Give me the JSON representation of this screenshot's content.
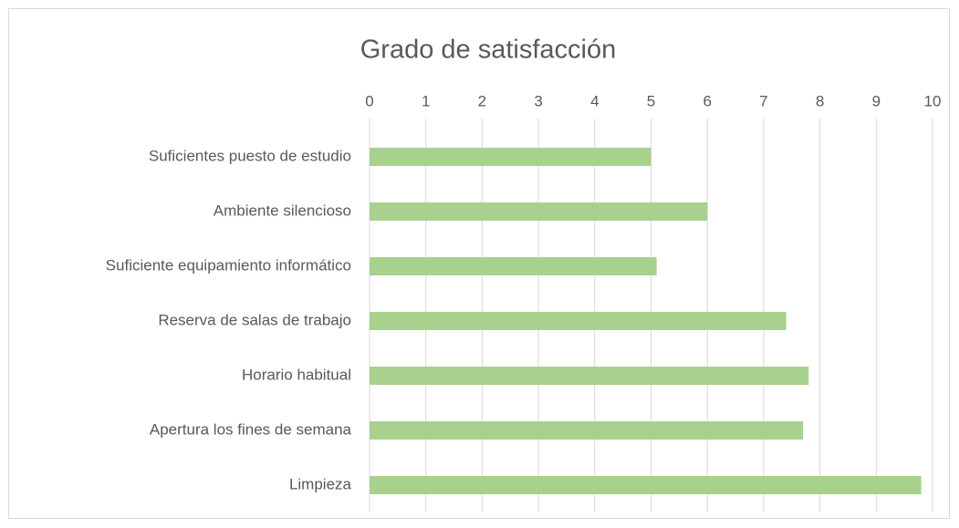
{
  "chart_data": {
    "type": "bar",
    "horizontal": true,
    "title": "Grado de satisfacción",
    "categories": [
      "Suficientes puesto de estudio",
      "Ambiente silencioso",
      "Suficiente equipamiento informático",
      "Reserva de salas de trabajo",
      "Horario habitual",
      "Apertura los fines de semana",
      "Limpieza"
    ],
    "values": [
      5.0,
      6.0,
      5.1,
      7.4,
      7.8,
      7.7,
      9.8
    ],
    "color": "#a9d18e",
    "xlim": [
      0,
      10
    ],
    "xticks": [
      0,
      1,
      2,
      3,
      4,
      5,
      6,
      7,
      8,
      9,
      10
    ],
    "grid": true
  }
}
